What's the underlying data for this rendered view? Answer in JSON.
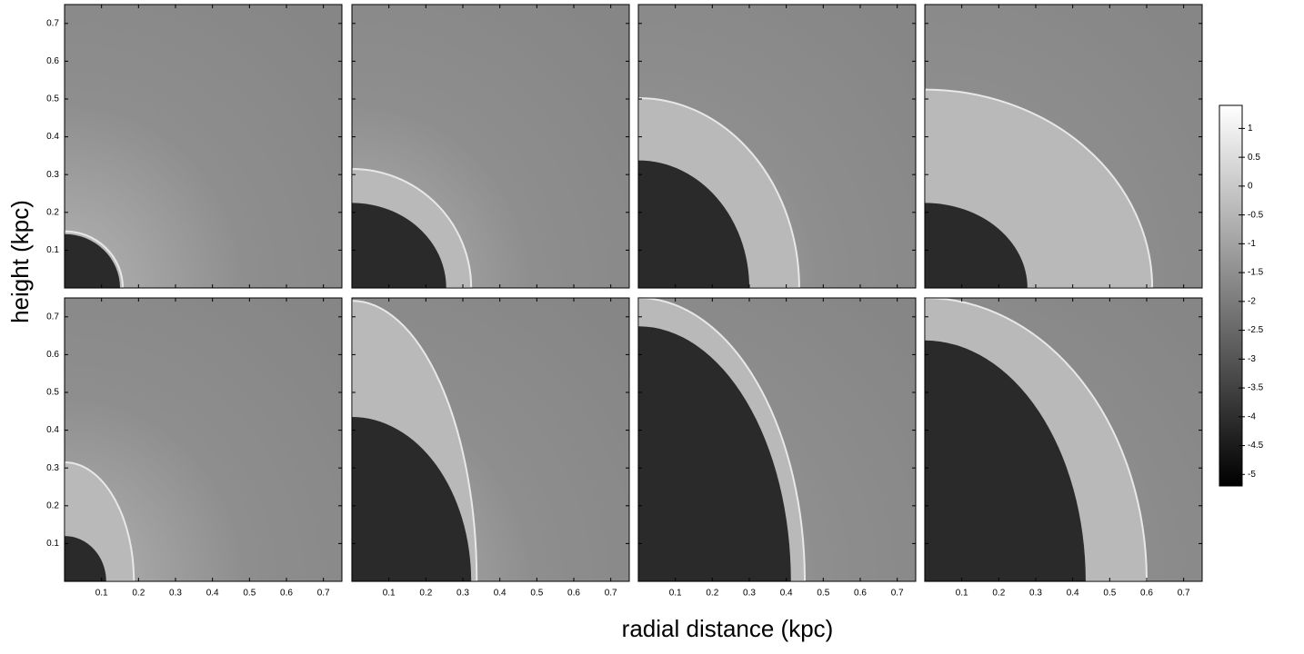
{
  "chart_data": {
    "type": "image-grid",
    "xlabel": "radial distance (kpc)",
    "ylabel": "height (kpc)",
    "xlim": [
      0,
      0.75
    ],
    "ylim": [
      0,
      0.75
    ],
    "xticks": [
      0.1,
      0.2,
      0.3,
      0.4,
      0.5,
      0.6,
      0.7
    ],
    "yticks": [
      0.1,
      0.2,
      0.3,
      0.4,
      0.5,
      0.6,
      0.7
    ],
    "colorbar": {
      "lim": [
        -5.2,
        1.4
      ],
      "ticks": [
        1,
        0.5,
        0,
        -0.5,
        -1,
        -1.5,
        -2,
        -2.5,
        -3,
        -3.5,
        -4,
        -4.5,
        -5
      ]
    }
  }
}
